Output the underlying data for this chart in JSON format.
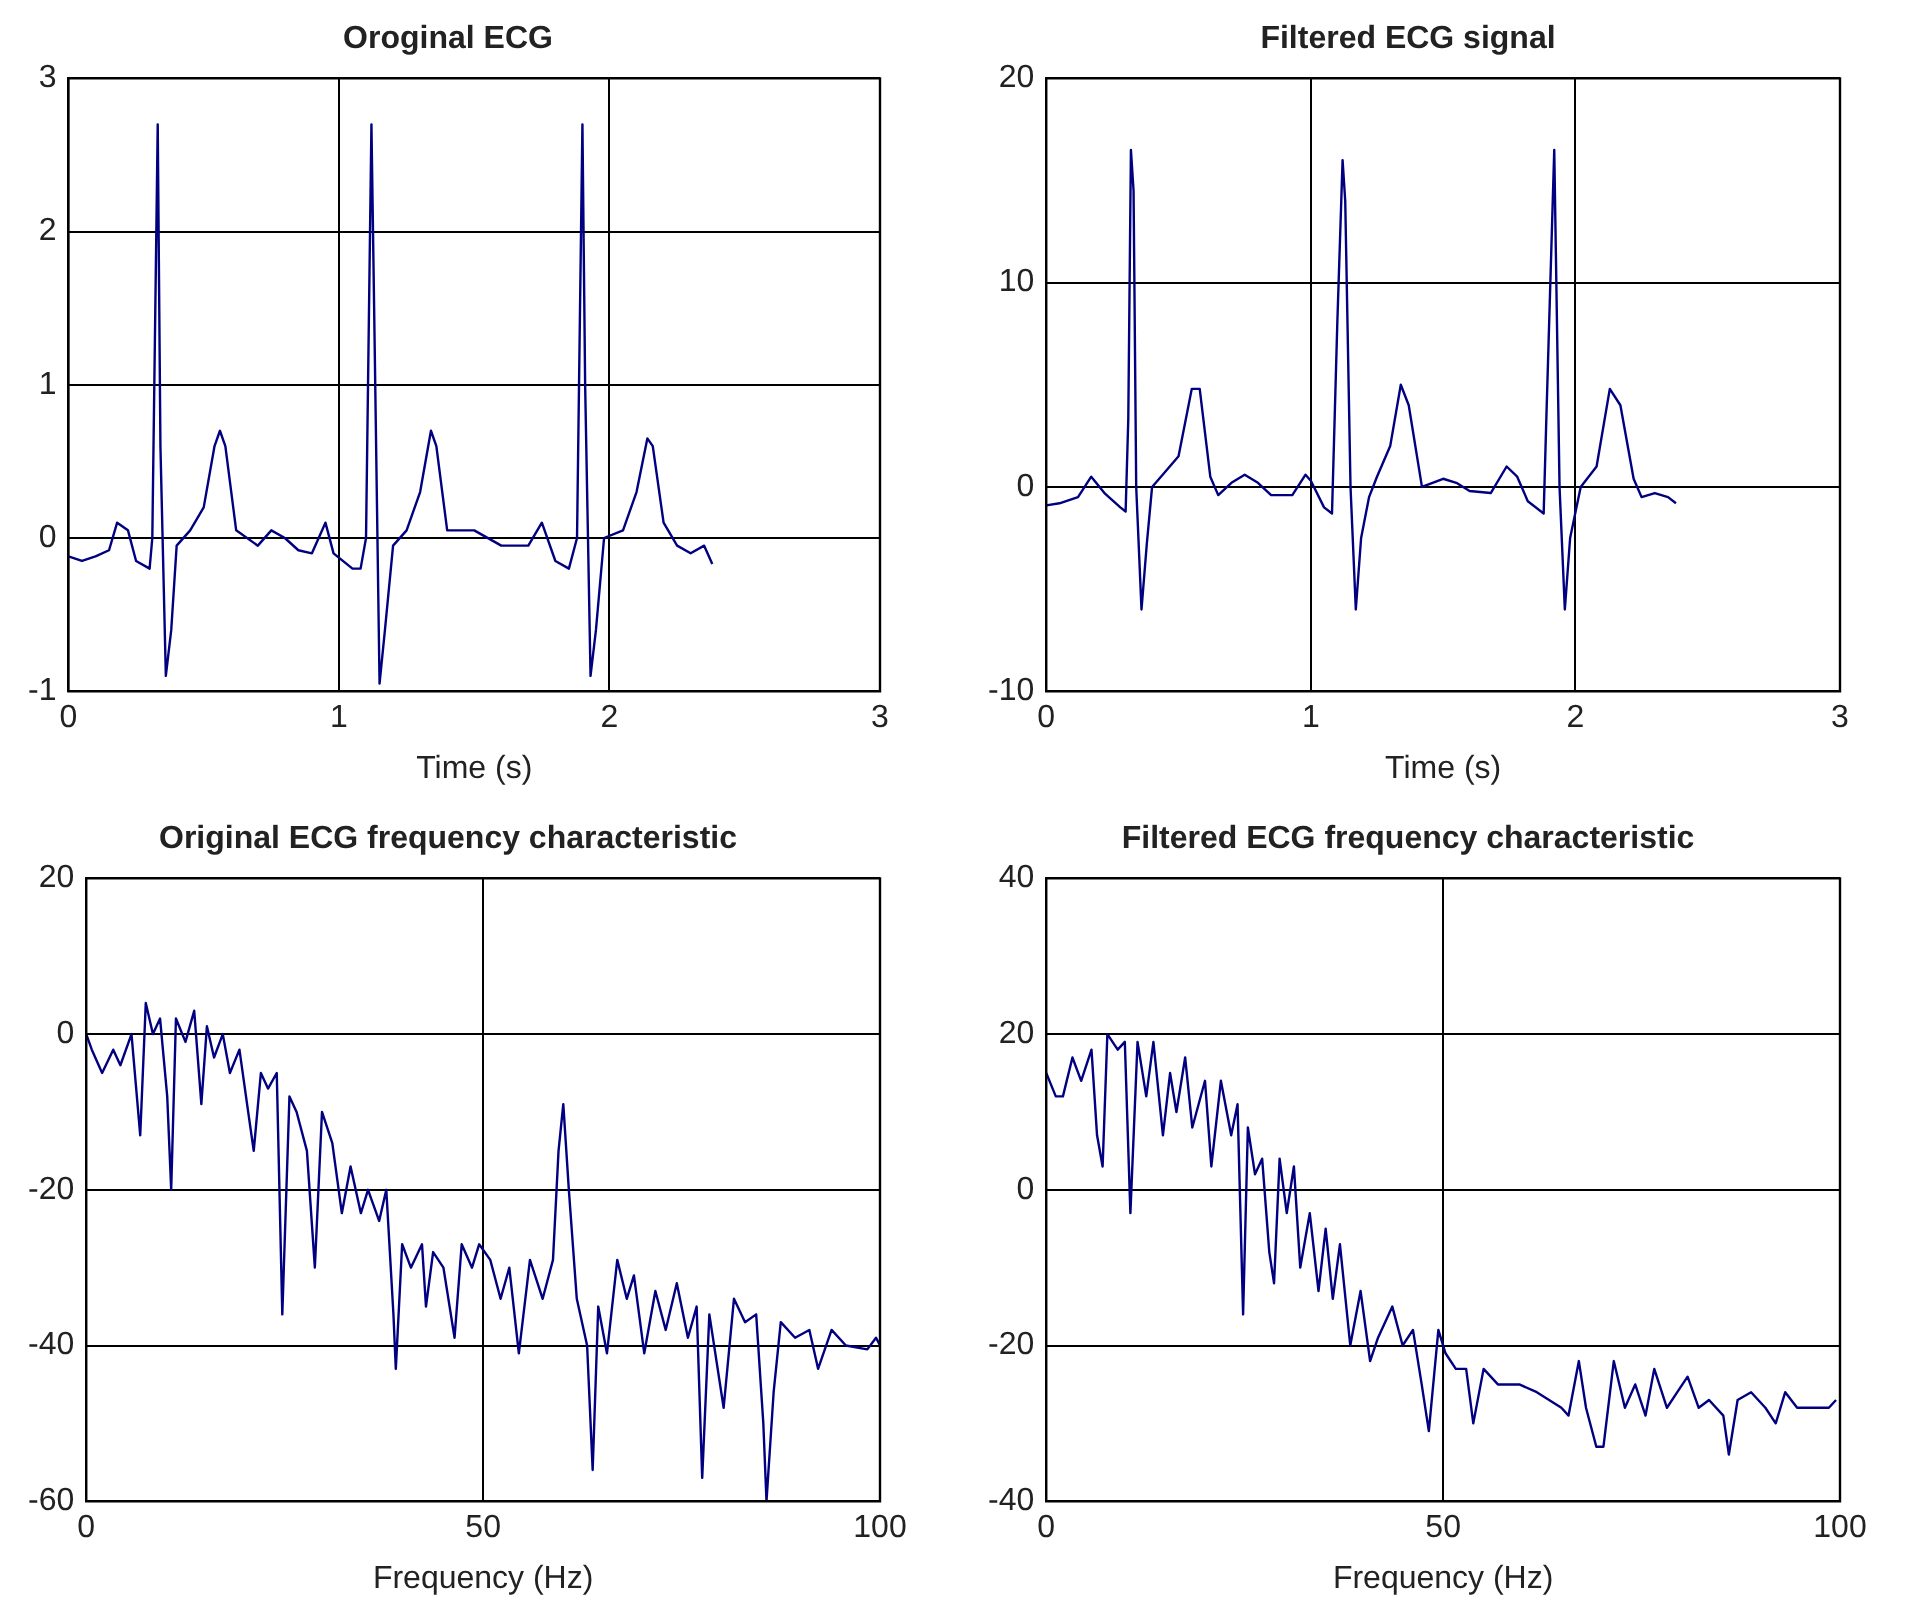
{
  "chart_data": [
    {
      "type": "line",
      "title": "Oroginal ECG",
      "xlabel": "Time (s)",
      "xlim": [
        0,
        3
      ],
      "ylim": [
        -1,
        3
      ],
      "xticks": [
        0,
        1,
        2,
        3
      ],
      "yticks": [
        -1,
        0,
        1,
        2,
        3
      ],
      "grid": true,
      "color": "#000080",
      "x": [
        0,
        0.05,
        0.1,
        0.15,
        0.18,
        0.22,
        0.25,
        0.3,
        0.31,
        0.33,
        0.34,
        0.36,
        0.38,
        0.4,
        0.45,
        0.5,
        0.54,
        0.56,
        0.58,
        0.62,
        0.7,
        0.75,
        0.8,
        0.85,
        0.9,
        0.95,
        0.98,
        1.05,
        1.08,
        1.1,
        1.12,
        1.13,
        1.15,
        1.17,
        1.2,
        1.25,
        1.3,
        1.34,
        1.36,
        1.4,
        1.5,
        1.6,
        1.7,
        1.75,
        1.8,
        1.85,
        1.88,
        1.9,
        1.91,
        1.93,
        1.95,
        1.98,
        2.05,
        2.1,
        2.14,
        2.16,
        2.2,
        2.25,
        2.3,
        2.35,
        2.38
      ],
      "values": [
        -0.12,
        -0.15,
        -0.12,
        -0.08,
        0.1,
        0.05,
        -0.15,
        -0.2,
        0,
        2.7,
        0.6,
        -0.9,
        -0.6,
        -0.05,
        0.05,
        0.2,
        0.6,
        0.7,
        0.6,
        0.05,
        -0.05,
        0.05,
        0,
        -0.08,
        -0.1,
        0.1,
        -0.1,
        -0.2,
        -0.2,
        0,
        2.7,
        1.5,
        -0.95,
        -0.6,
        -0.05,
        0.05,
        0.3,
        0.7,
        0.6,
        0.05,
        0.05,
        -0.05,
        -0.05,
        0.1,
        -0.15,
        -0.2,
        0,
        2.7,
        1,
        -0.9,
        -0.6,
        0,
        0.05,
        0.3,
        0.65,
        0.6,
        0.1,
        -0.05,
        -0.1,
        -0.05,
        -0.17
      ]
    },
    {
      "type": "line",
      "title": "Filtered ECG signal",
      "xlabel": "Time (s)",
      "xlim": [
        0,
        3
      ],
      "ylim": [
        -10,
        20
      ],
      "xticks": [
        0,
        1,
        2,
        3
      ],
      "yticks": [
        -10,
        0,
        10,
        20
      ],
      "grid": true,
      "color": "#000080",
      "x": [
        0,
        0.05,
        0.12,
        0.17,
        0.22,
        0.28,
        0.3,
        0.31,
        0.32,
        0.33,
        0.34,
        0.36,
        0.38,
        0.4,
        0.44,
        0.5,
        0.55,
        0.58,
        0.62,
        0.65,
        0.7,
        0.75,
        0.8,
        0.85,
        0.93,
        0.98,
        1,
        1.05,
        1.08,
        1.1,
        1.12,
        1.13,
        1.15,
        1.17,
        1.19,
        1.22,
        1.25,
        1.3,
        1.34,
        1.37,
        1.42,
        1.5,
        1.55,
        1.6,
        1.68,
        1.74,
        1.78,
        1.82,
        1.88,
        1.89,
        1.92,
        1.94,
        1.96,
        1.98,
        2.02,
        2.08,
        2.13,
        2.17,
        2.22,
        2.25,
        2.3,
        2.35,
        2.38
      ],
      "values": [
        -0.9,
        -0.8,
        -0.5,
        0.5,
        -0.3,
        -1,
        -1.2,
        3.3,
        16.5,
        14.5,
        0,
        -6,
        -2.8,
        0,
        0.6,
        1.5,
        4.8,
        4.8,
        0.5,
        -0.4,
        0.2,
        0.6,
        0.2,
        -0.4,
        -0.4,
        0.6,
        0.3,
        -1,
        -1.3,
        8,
        16,
        14,
        0,
        -6,
        -2.5,
        -0.5,
        0.5,
        2,
        5,
        4,
        0,
        0.4,
        0.2,
        -0.2,
        -0.3,
        1,
        0.5,
        -0.7,
        -1.3,
        3.3,
        16.5,
        0,
        -6,
        -2.5,
        0,
        1,
        4.8,
        4,
        0.4,
        -0.5,
        -0.3,
        -0.5,
        -0.8
      ]
    },
    {
      "type": "line",
      "title": "Original ECG frequency characteristic",
      "xlabel": "Frequency (Hz)",
      "xlim": [
        0,
        100
      ],
      "ylim": [
        -60,
        20
      ],
      "xticks": [
        0,
        50,
        100
      ],
      "yticks": [
        -60,
        -40,
        -20,
        0,
        20
      ],
      "grid": true,
      "color": "#000080",
      "x": [
        0,
        0.7,
        2,
        3.4,
        4.3,
        5.7,
        6.8,
        7.5,
        8.4,
        9.3,
        10.2,
        10.7,
        11.3,
        12.5,
        13.6,
        14.5,
        15.2,
        16.1,
        17.2,
        18.1,
        19.3,
        20.4,
        21.1,
        22,
        22.9,
        24,
        24.7,
        25.6,
        26.5,
        27.8,
        28.8,
        29.7,
        31,
        32.2,
        33.3,
        34.6,
        35.5,
        36.9,
        37.8,
        38.7,
        39,
        39.8,
        40.9,
        42.3,
        42.8,
        43.7,
        45,
        46.4,
        47.3,
        48.6,
        49.5,
        50.9,
        52.2,
        53.3,
        54.5,
        55.9,
        57.5,
        58.8,
        59.5,
        60.1,
        60.8,
        61.8,
        63.1,
        63.8,
        64.5,
        65.6,
        66.9,
        68.1,
        69,
        70.3,
        71.7,
        73,
        74.4,
        75.8,
        76.9,
        77.6,
        78.5,
        80.3,
        81.6,
        83,
        84.4,
        85.3,
        85.7,
        86.6,
        87.5,
        89.3,
        91.1,
        92.2,
        93.9,
        95.7,
        98.4,
        99.5,
        100
      ],
      "values": [
        0,
        -2,
        -5,
        -2,
        -4,
        0,
        -13,
        4,
        0,
        2,
        -8,
        -20,
        2,
        -1,
        3,
        -9,
        1,
        -3,
        0,
        -5,
        -2,
        -10,
        -15,
        -5,
        -7,
        -5,
        -36,
        -8,
        -10,
        -15,
        -30,
        -10,
        -14,
        -23,
        -17,
        -23,
        -20,
        -24,
        -20,
        -36,
        -43,
        -27,
        -30,
        -27,
        -35,
        -28,
        -30,
        -39,
        -27,
        -30,
        -27,
        -29,
        -34,
        -30,
        -41,
        -29,
        -34,
        -29,
        -15,
        -9,
        -20,
        -34,
        -40,
        -56,
        -35,
        -41,
        -29,
        -34,
        -31,
        -41,
        -33,
        -38,
        -32,
        -39,
        -35,
        -57,
        -36,
        -48,
        -34,
        -37,
        -36,
        -50,
        -60,
        -46,
        -37,
        -39,
        -38,
        -43,
        -38,
        -40,
        -40.5,
        -39,
        -40
      ]
    },
    {
      "type": "line",
      "title": "Filtered ECG frequency characteristic",
      "xlabel": "Frequency (Hz)",
      "xlim": [
        0,
        100
      ],
      "ylim": [
        -40,
        40
      ],
      "xticks": [
        0,
        50,
        100
      ],
      "yticks": [
        -40,
        -20,
        0,
        20,
        40
      ],
      "grid": true,
      "color": "#000080",
      "x": [
        0,
        1.2,
        2.1,
        3.3,
        4.4,
        5.7,
        6.4,
        7.1,
        7.7,
        9,
        9.9,
        10.6,
        11.5,
        12.6,
        13.5,
        14.7,
        15.6,
        16.4,
        17.5,
        18.4,
        20,
        20.8,
        22,
        23.3,
        24.1,
        24.8,
        25.4,
        26.3,
        27.2,
        28.1,
        28.7,
        29.4,
        30.3,
        31.2,
        32,
        33.2,
        34.3,
        35.2,
        36.1,
        37,
        38.3,
        39.6,
        40.8,
        41.8,
        43.6,
        44.9,
        46.2,
        47.3,
        48.2,
        49.4,
        50.3,
        51.6,
        52.9,
        53.8,
        55.1,
        56.9,
        59.6,
        61.8,
        64.9,
        65.8,
        67.1,
        68,
        69.3,
        70.2,
        71.5,
        72.9,
        74.2,
        75.5,
        76.6,
        78.2,
        79.5,
        80.8,
        82.2,
        83.5,
        85.3,
        86,
        87.1,
        88.8,
        90.6,
        91.9,
        93.1,
        94.6,
        96.8,
        98.6,
        99.5
      ],
      "values": [
        15,
        12,
        12,
        17,
        14,
        18,
        7,
        3,
        20,
        18,
        19,
        -3,
        19,
        12,
        19,
        7,
        15,
        10,
        17,
        8,
        14,
        3,
        14,
        7,
        11,
        -16,
        8,
        2,
        4,
        -8,
        -12,
        4,
        -3,
        3,
        -10,
        -3,
        -13,
        -5,
        -14,
        -7,
        -20,
        -13,
        -22,
        -19,
        -15,
        -20,
        -18,
        -25,
        -31,
        -18,
        -21,
        -23,
        -23,
        -30,
        -23,
        -25,
        -25,
        -26,
        -28,
        -29,
        -22,
        -28,
        -33,
        -33,
        -22,
        -28,
        -25,
        -29,
        -23,
        -28,
        -26,
        -24,
        -28,
        -27,
        -29,
        -34,
        -27,
        -26,
        -28,
        -30,
        -26,
        -28,
        -28,
        -28,
        -27
      ]
    }
  ]
}
